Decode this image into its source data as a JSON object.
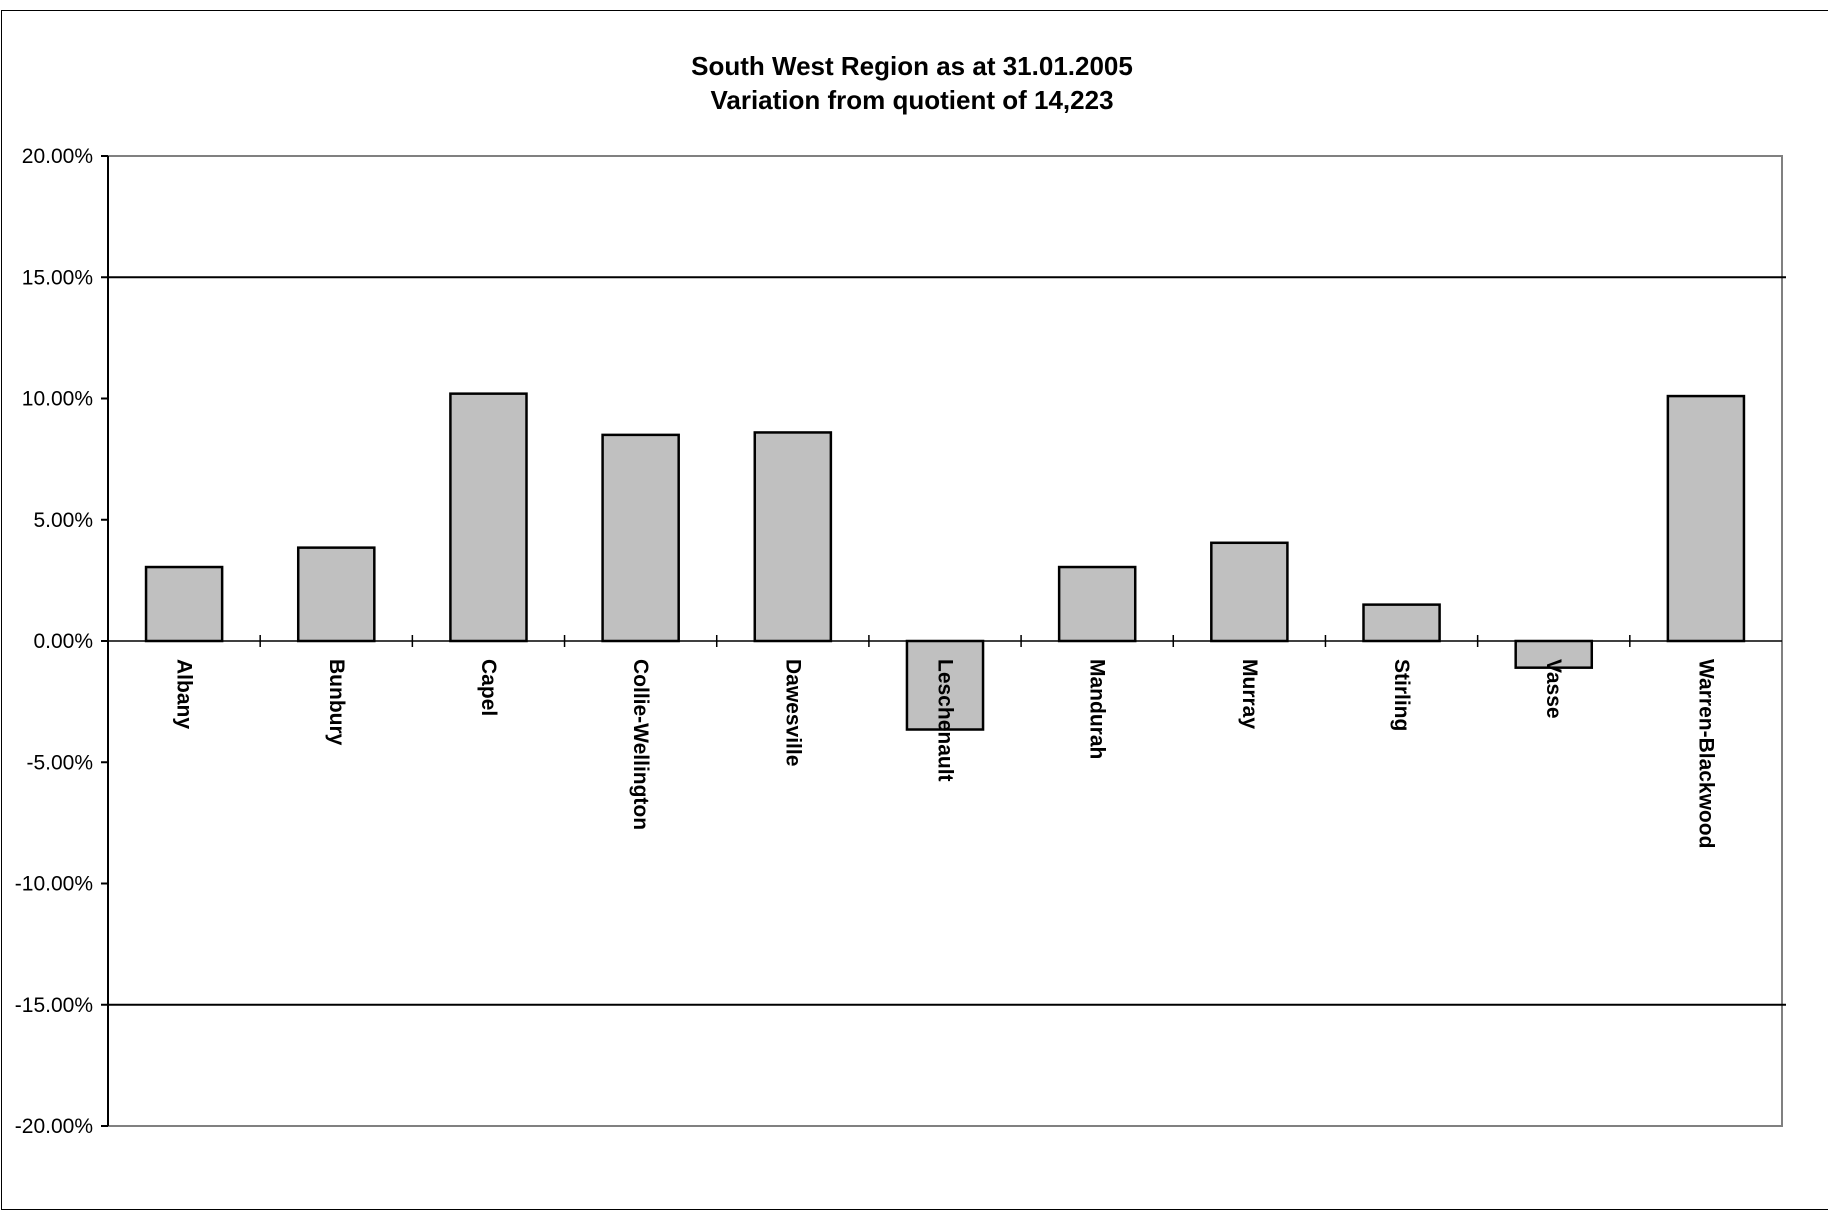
{
  "chart_data": {
    "type": "bar",
    "title": "South West Region as at 31.01.2005",
    "subtitle": "Variation from quotient of 14,223",
    "categories": [
      "Albany",
      "Bunbury",
      "Capel",
      "Collie-Wellington",
      "Dawesville",
      "Leschenault",
      "Mandurah",
      "Murray",
      "Stirling",
      "Vasse",
      "Warren-Blackwood"
    ],
    "values": [
      3.05,
      3.85,
      10.2,
      8.5,
      8.6,
      -3.65,
      3.05,
      4.05,
      1.5,
      -1.1,
      10.1
    ],
    "value_unit": "%",
    "ylim": [
      -20,
      20
    ],
    "yticks": [
      20,
      15,
      10,
      5,
      0,
      -5,
      -10,
      -15,
      -20
    ],
    "ytick_labels": [
      "20.00%",
      "15.00%",
      "10.00%",
      "5.00%",
      "0.00%",
      "-5.00%",
      "-10.00%",
      "-15.00%",
      "-20.00%"
    ],
    "reference_lines": [
      15,
      -15
    ],
    "xlabel": "",
    "ylabel": "",
    "legend": "none",
    "grid": false,
    "colors": {
      "bar_fill": "#c0c0c0",
      "bar_stroke": "#000000",
      "plot_border": "#808080",
      "axis": "#000000"
    }
  }
}
